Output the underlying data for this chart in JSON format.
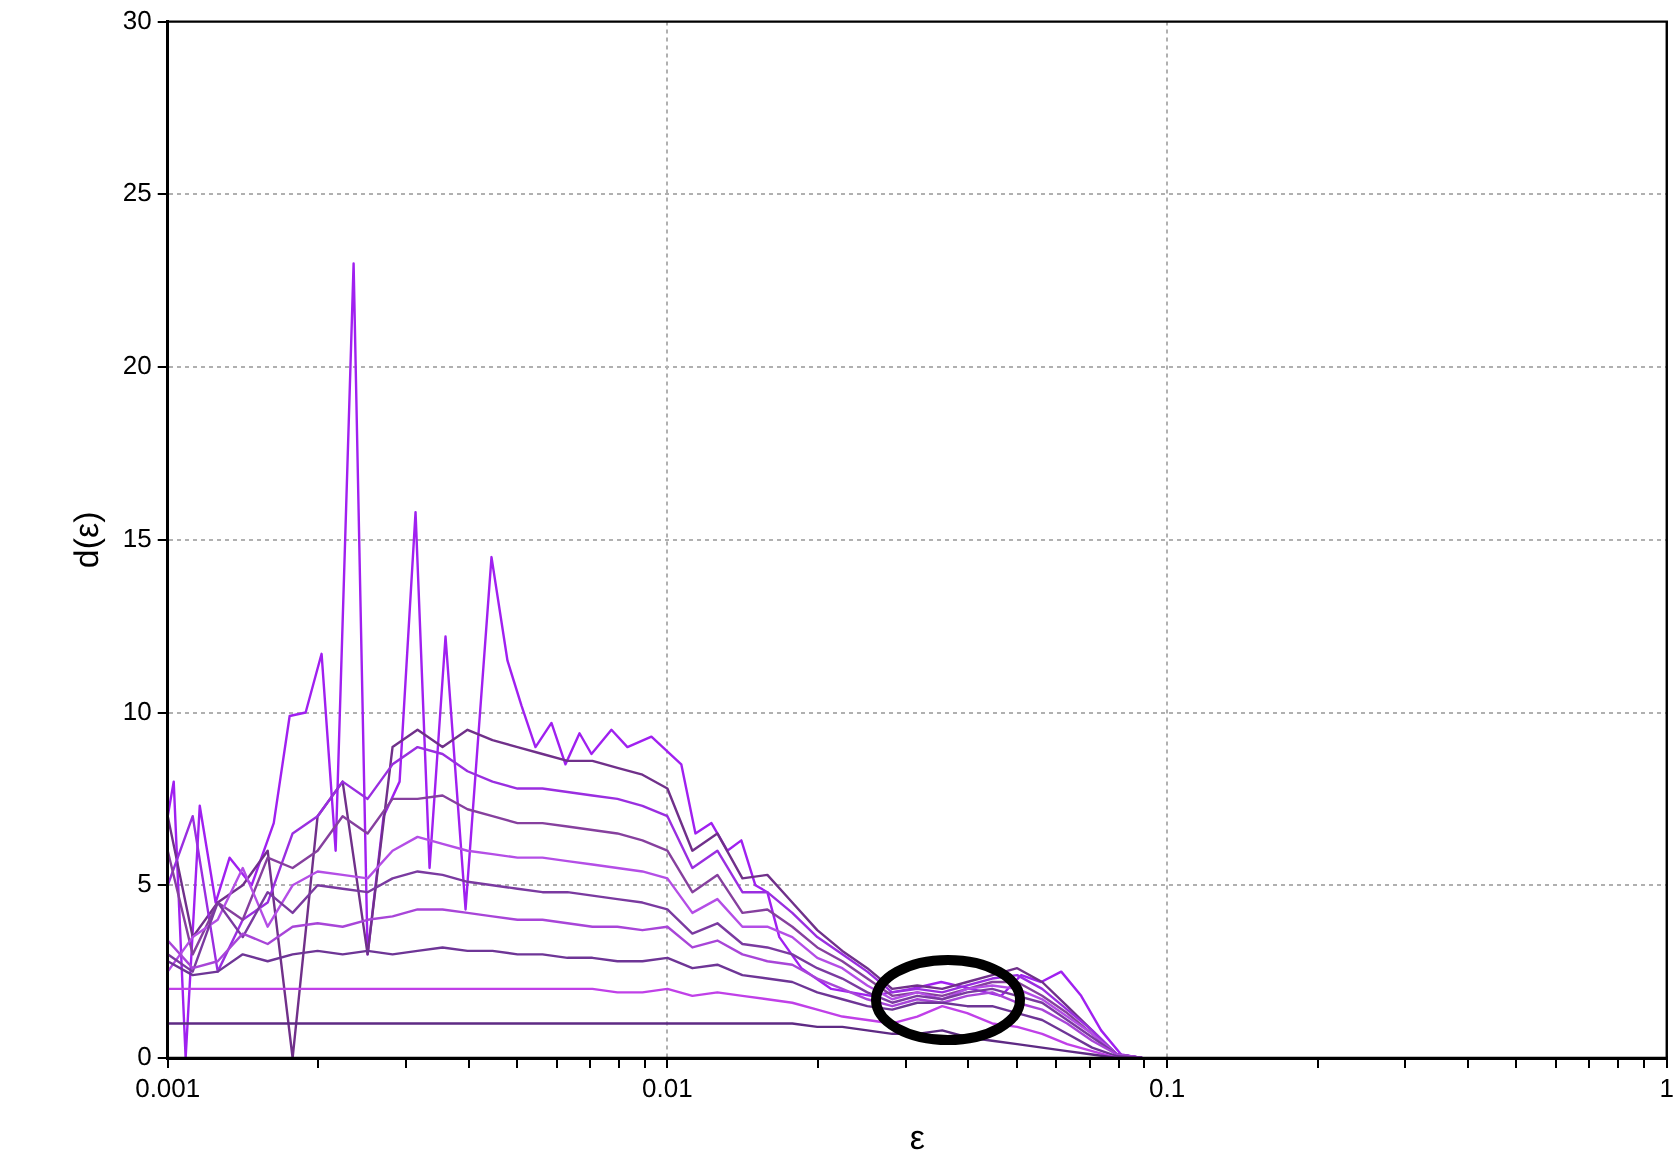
{
  "chart_data": {
    "type": "line",
    "xlabel": "ε",
    "ylabel": "d(ε)",
    "log": "x",
    "grid": true,
    "xlim": [
      0.001,
      1
    ],
    "ylim": [
      0,
      30
    ],
    "xticks": [
      0.001,
      {
        "value": 0.002,
        "label": null
      },
      {
        "value": 0.003,
        "label": null
      },
      {
        "value": 0.004,
        "label": null
      },
      {
        "value": 0.005,
        "label": null
      },
      {
        "value": 0.006,
        "label": null
      },
      {
        "value": 0.007,
        "label": null
      },
      {
        "value": 0.008,
        "label": null
      },
      {
        "value": 0.009,
        "label": null
      },
      0.01,
      {
        "value": 0.02,
        "label": null
      },
      {
        "value": 0.03,
        "label": null
      },
      {
        "value": 0.04,
        "label": null
      },
      {
        "value": 0.05,
        "label": null
      },
      {
        "value": 0.06,
        "label": null
      },
      {
        "value": 0.07,
        "label": null
      },
      {
        "value": 0.08,
        "label": null
      },
      {
        "value": 0.09,
        "label": null
      },
      0.1,
      {
        "value": 0.2,
        "label": null
      },
      {
        "value": 0.3,
        "label": null
      },
      {
        "value": 0.4,
        "label": null
      },
      {
        "value": 0.5,
        "label": null
      },
      {
        "value": 0.6,
        "label": null
      },
      {
        "value": 0.7,
        "label": null
      },
      {
        "value": 0.8,
        "label": null
      },
      {
        "value": 0.9,
        "label": null
      },
      1
    ],
    "yticks": [
      0,
      5,
      10,
      15,
      20,
      25,
      30
    ],
    "x": [
      0.001,
      0.001122,
      0.001259,
      0.001413,
      0.001585,
      0.001778,
      0.001995,
      0.002239,
      0.002512,
      0.002818,
      0.003162,
      0.003548,
      0.003981,
      0.004467,
      0.005012,
      0.005623,
      0.00631,
      0.007079,
      0.007943,
      0.008913,
      0.01,
      0.01122,
      0.01259,
      0.01413,
      0.01585,
      0.01778,
      0.01995,
      0.02239,
      0.02512,
      0.02818,
      0.03162,
      0.03548,
      0.03981,
      0.04467,
      0.05012,
      0.05623,
      0.0631,
      0.07079,
      0.07943,
      0.08913
    ],
    "series": [
      {
        "color": "#5e2a84",
        "values": [
          1,
          1,
          1,
          1,
          1,
          1,
          1,
          1,
          1,
          1,
          1,
          1,
          1,
          1,
          1,
          1,
          1,
          1,
          1,
          1,
          1,
          1,
          1,
          1,
          1,
          1,
          0.9,
          0.9,
          0.8,
          0.7,
          0.7,
          0.8,
          0.6,
          0.5,
          0.4,
          0.3,
          0.2,
          0.1,
          0,
          0
        ]
      },
      {
        "color": "#c040e8",
        "values": [
          2,
          2,
          2,
          2,
          2,
          2,
          2,
          2,
          2,
          2,
          2,
          2,
          2,
          2,
          2,
          2,
          2,
          2,
          1.9,
          1.9,
          2,
          1.8,
          1.9,
          1.8,
          1.7,
          1.6,
          1.4,
          1.2,
          1.1,
          1.0,
          1.2,
          1.5,
          1.3,
          1.0,
          0.9,
          0.7,
          0.4,
          0.2,
          0,
          0
        ]
      },
      {
        "color": "#6e3596",
        "values": [
          2.8,
          2.4,
          2.5,
          3.0,
          2.8,
          3.0,
          3.1,
          3.0,
          3.1,
          3.0,
          3.1,
          3.2,
          3.1,
          3.1,
          3.0,
          3.0,
          2.9,
          2.9,
          2.8,
          2.8,
          2.9,
          2.6,
          2.7,
          2.4,
          2.3,
          2.2,
          1.9,
          1.7,
          1.5,
          1.4,
          1.6,
          1.6,
          1.5,
          1.5,
          1.3,
          1.1,
          0.7,
          0.3,
          0.05,
          0
        ]
      },
      {
        "color": "#a845d8",
        "values": [
          3.4,
          2.6,
          2.8,
          3.6,
          3.3,
          3.8,
          3.9,
          3.8,
          4.0,
          4.1,
          4.3,
          4.3,
          4.2,
          4.1,
          4.0,
          4.0,
          3.9,
          3.8,
          3.8,
          3.7,
          3.8,
          3.2,
          3.4,
          3.0,
          2.8,
          2.7,
          2.3,
          2.0,
          1.7,
          1.5,
          1.7,
          1.6,
          1.8,
          1.9,
          1.6,
          1.4,
          1.0,
          0.5,
          0.1,
          0
        ]
      },
      {
        "color": "#7a3aa0",
        "values": [
          3.0,
          2.5,
          4.5,
          3.5,
          4.8,
          4.2,
          5.0,
          4.9,
          4.8,
          5.2,
          5.4,
          5.3,
          5.1,
          5.0,
          4.9,
          4.8,
          4.8,
          4.7,
          4.6,
          4.5,
          4.3,
          3.6,
          3.9,
          3.3,
          3.2,
          3.0,
          2.6,
          2.3,
          1.9,
          1.6,
          1.8,
          1.7,
          1.9,
          2.0,
          1.8,
          1.6,
          1.1,
          0.6,
          0.1,
          0
        ]
      },
      {
        "color": "#b44ee6",
        "values": [
          2.5,
          3.5,
          4.0,
          5.5,
          3.8,
          5.0,
          5.4,
          5.3,
          5.2,
          6.0,
          6.4,
          6.2,
          6.0,
          5.9,
          5.8,
          5.8,
          5.7,
          5.6,
          5.5,
          5.4,
          5.2,
          4.2,
          4.6,
          3.8,
          3.8,
          3.5,
          2.9,
          2.6,
          2.1,
          1.7,
          1.9,
          1.7,
          2.0,
          2.1,
          2.0,
          1.7,
          1.2,
          0.7,
          0.1,
          0
        ]
      },
      {
        "color": "#86409e",
        "values": [
          6.0,
          3.0,
          4.5,
          4.0,
          5.8,
          5.5,
          6.0,
          7.0,
          6.5,
          7.5,
          7.5,
          7.6,
          7.2,
          7.0,
          6.8,
          6.8,
          6.7,
          6.6,
          6.5,
          6.3,
          6.0,
          4.8,
          5.3,
          4.2,
          4.3,
          3.8,
          3.2,
          2.8,
          2.3,
          1.8,
          1.9,
          1.8,
          2.0,
          2.2,
          2.2,
          1.8,
          1.3,
          0.7,
          0.1,
          0
        ]
      },
      {
        "color": "#9a2ee0",
        "values": [
          5.0,
          7.0,
          2.5,
          4.0,
          4.5,
          6.5,
          7.0,
          8.0,
          7.5,
          8.5,
          9.0,
          8.8,
          8.3,
          8.0,
          7.8,
          7.8,
          7.7,
          7.6,
          7.5,
          7.3,
          7.0,
          5.5,
          6.0,
          4.8,
          4.8,
          4.2,
          3.5,
          3.0,
          2.5,
          1.9,
          2.0,
          1.9,
          2.1,
          2.3,
          2.4,
          2.0,
          1.4,
          0.8,
          0.1,
          0
        ]
      },
      {
        "color": "#70308a",
        "values": [
          7.0,
          3.5,
          4.5,
          5.0,
          6.0,
          0,
          7.0,
          8.0,
          3.0,
          9.0,
          9.5,
          9.0,
          9.5,
          9.2,
          9.0,
          8.8,
          8.6,
          8.6,
          8.4,
          8.2,
          7.8,
          6.0,
          6.5,
          5.2,
          5.3,
          4.5,
          3.7,
          3.1,
          2.6,
          2.0,
          2.1,
          2.0,
          2.2,
          2.4,
          2.6,
          2.2,
          1.5,
          0.8,
          0.1,
          0
        ]
      },
      {
        "color": "#a020f0",
        "x": [
          0.001,
          0.001028,
          0.001086,
          0.001159,
          0.001247,
          0.00133,
          0.001472,
          0.00163,
          0.001754,
          0.001888,
          0.002032,
          0.002168,
          0.002355,
          0.002512,
          0.002704,
          0.002911,
          0.003133,
          0.003342,
          0.003597,
          0.003945,
          0.004446,
          0.004786,
          0.005105,
          0.005445,
          0.005861,
          0.006252,
          0.00667,
          0.007047,
          0.007727,
          0.008318,
          0.00929,
          0.01066,
          0.01138,
          0.01225,
          0.01318,
          0.01406,
          0.015,
          0.01585,
          0.01675,
          0.01854,
          0.02128,
          0.02559,
          0.03076,
          0.03532,
          0.04055,
          0.04656,
          0.05105,
          0.05598,
          0.0614,
          0.0673,
          0.07379,
          0.08091,
          0.08872
        ],
        "values": [
          7.0,
          8.0,
          0,
          7.3,
          4.5,
          5.8,
          5.0,
          6.8,
          9.9,
          10.0,
          11.7,
          6.0,
          23.0,
          3.0,
          7.0,
          8.0,
          15.8,
          5.5,
          12.2,
          4.3,
          14.5,
          11.5,
          10.2,
          9.0,
          9.7,
          8.5,
          9.4,
          8.8,
          9.5,
          9.0,
          9.3,
          8.5,
          6.5,
          6.8,
          6.0,
          6.3,
          5.0,
          4.8,
          3.5,
          2.6,
          2.0,
          1.8,
          2.0,
          2.2,
          2.0,
          1.8,
          2.4,
          2.2,
          2.5,
          1.8,
          0.8,
          0.1,
          0
        ]
      }
    ]
  }
}
